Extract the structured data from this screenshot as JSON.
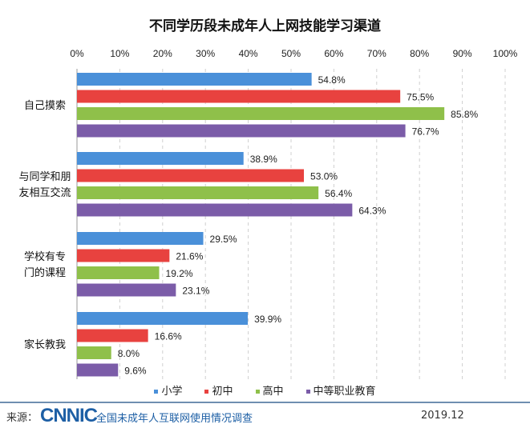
{
  "chart_data": {
    "type": "bar",
    "orientation": "horizontal",
    "title": "不同学历段未成年人上网技能学习渠道",
    "categories": [
      "自己摸索",
      "与同学和朋友相互交流",
      "学校有专门的课程",
      "家长教我"
    ],
    "category_lines": [
      [
        "自己摸索"
      ],
      [
        "与同学和朋",
        "友相互交流"
      ],
      [
        "学校有专",
        "门的课程"
      ],
      [
        "家长教我"
      ]
    ],
    "series": [
      {
        "name": "小学",
        "color": "#4a90d9",
        "values": [
          54.8,
          38.9,
          29.5,
          39.9
        ]
      },
      {
        "name": "初中",
        "color": "#e8423f",
        "values": [
          75.5,
          53.0,
          21.6,
          16.6
        ]
      },
      {
        "name": "高中",
        "color": "#8fc04a",
        "values": [
          85.8,
          56.4,
          19.2,
          8.0
        ]
      },
      {
        "name": "中等职业教育",
        "color": "#7b5ca8",
        "values": [
          76.7,
          64.3,
          23.1,
          9.6
        ]
      }
    ],
    "xlim": [
      0,
      100
    ],
    "xticks": [
      "0%",
      "10%",
      "20%",
      "30%",
      "40%",
      "50%",
      "60%",
      "70%",
      "80%",
      "90%",
      "100%"
    ],
    "grid": true,
    "legend_position": "bottom"
  },
  "footer": {
    "source_label": "来源：",
    "logo_text": "CNNIC",
    "survey": "全国未成年人互联网使用情况调查",
    "date": "2019.12"
  }
}
